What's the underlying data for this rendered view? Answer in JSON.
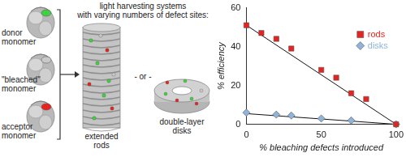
{
  "diagram": {
    "heading": [
      "light harvesting systems",
      "with varying numbers of defect sites:"
    ],
    "monomers": [
      {
        "label": [
          "donor",
          "monomer"
        ],
        "color": "#3fd13f"
      },
      {
        "label": [
          "\"bleached\"",
          "monomer"
        ],
        "color": "#c9c9c9"
      },
      {
        "label": [
          "acceptor",
          "monomer"
        ],
        "color": "#e8231f"
      }
    ],
    "assemblies": [
      {
        "label": [
          "extended",
          "rods"
        ]
      },
      {
        "label": [
          "double-layer",
          "disks"
        ]
      }
    ],
    "separator": "- or -"
  },
  "chart_data": {
    "type": "scatter",
    "x_label": "% bleaching defects introduced",
    "y_label": "% efficiency",
    "xlim": [
      0,
      100
    ],
    "xticks": [
      0,
      50,
      100
    ],
    "ylim": [
      0,
      60
    ],
    "yticks": [
      0,
      20,
      40,
      60
    ],
    "grid": false,
    "legend": "top right",
    "series": [
      {
        "name": "rods",
        "color": "#e8231f",
        "marker": "square",
        "x": [
          0,
          10,
          20,
          30,
          50,
          60,
          70,
          80,
          100
        ],
        "values": [
          51,
          47,
          44,
          39,
          28,
          24,
          16,
          13,
          0
        ],
        "fit": {
          "x": [
            0,
            100
          ],
          "values": [
            51,
            0
          ]
        }
      },
      {
        "name": "disks",
        "color": "#8fb3d9",
        "marker": "diamond",
        "x": [
          0,
          20,
          30,
          50,
          70,
          100
        ],
        "values": [
          6,
          5,
          4.5,
          3,
          2,
          0
        ],
        "fit": {
          "x": [
            0,
            100
          ],
          "values": [
            5.5,
            0
          ]
        }
      }
    ]
  }
}
